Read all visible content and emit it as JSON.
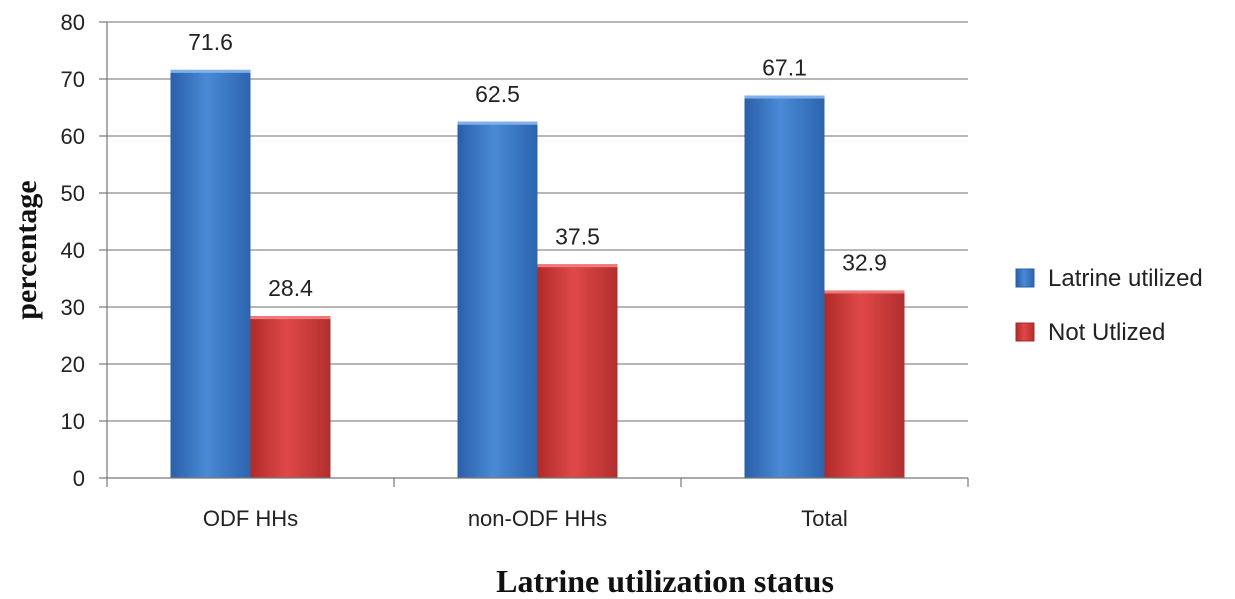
{
  "chart_data": {
    "type": "bar",
    "title": "",
    "xlabel": "Latrine utilization status",
    "ylabel": "percentage",
    "categories": [
      "ODF HHs",
      "non-ODF HHs",
      "Total"
    ],
    "series": [
      {
        "name": "Latrine utilized",
        "values": [
          71.6,
          62.5,
          67.1
        ],
        "color": "#3a76c4"
      },
      {
        "name": "Not Utlized",
        "values": [
          28.4,
          37.5,
          32.9
        ],
        "color": "#cf3a3a"
      }
    ],
    "data_labels": [
      [
        "71.6",
        "62.5",
        "67.1"
      ],
      [
        "28.4",
        "37.5",
        "32.9"
      ]
    ],
    "ylim": [
      0,
      80
    ],
    "yticks": [
      "0",
      "10",
      "20",
      "30",
      "40",
      "50",
      "60",
      "70",
      "80"
    ],
    "grid": true,
    "legend_position": "right"
  }
}
